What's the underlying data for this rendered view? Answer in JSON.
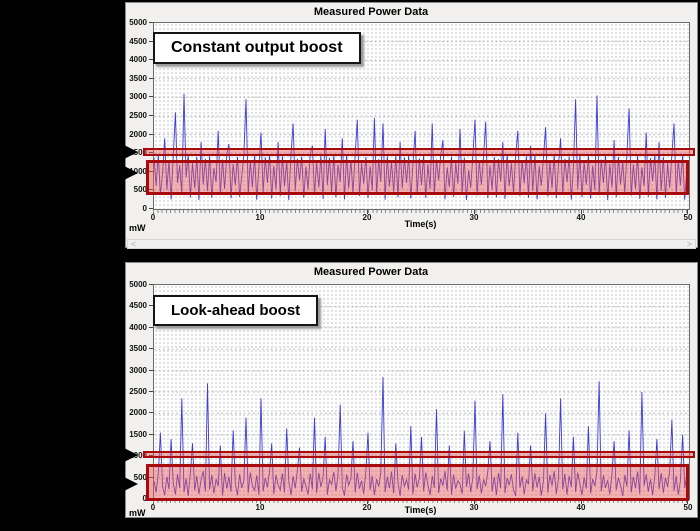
{
  "window": {
    "background": "#000000",
    "accent_red": "#a80b0b",
    "line_blue": "#3c3cd6"
  },
  "scrollbar": {
    "left_icon": "<",
    "right_icon": ">"
  },
  "chart_data": [
    {
      "type": "line",
      "title": "Measured Power Data",
      "annotation": "Constant output boost",
      "xlabel": "Time(s)",
      "unit": "mW",
      "xlim": [
        0,
        50
      ],
      "ylim": [
        0,
        5000
      ],
      "xticks": [
        0,
        10,
        20,
        30,
        40,
        50
      ],
      "yticks": [
        0,
        500,
        1000,
        1500,
        2000,
        2500,
        3000,
        3500,
        4000,
        4500,
        5000
      ],
      "grid": "dotted",
      "legend": "none",
      "line_color": "#3c3cd6",
      "highlight_band": {
        "y_from": 1400,
        "y_to": 1600
      },
      "highlight_box": {
        "y_from": 420,
        "y_to": 1300
      },
      "arrow_values": [
        1500,
        950
      ],
      "x_step": 0.2,
      "y_values": [
        1380,
        620,
        1450,
        380,
        980,
        1900,
        520,
        1300,
        260,
        1430,
        2600,
        700,
        1180,
        420,
        3100,
        850,
        1460,
        310,
        1240,
        560,
        1400,
        240,
        1800,
        660,
        1350,
        480,
        1420,
        300,
        1100,
        720,
        2100,
        380,
        1330,
        540,
        1460,
        1750,
        290,
        1210,
        640,
        1400,
        330,
        860,
        1480,
        2950,
        410,
        1270,
        580,
        1440,
        250,
        1120,
        2050,
        450,
        1390,
        700,
        1450,
        280,
        1160,
        530,
        1800,
        350,
        1420,
        610,
        1280,
        240,
        1460,
        2300,
        480,
        1350,
        770,
        1410,
        300,
        1140,
        520,
        1470,
        1700,
        390,
        1260,
        580,
        1430,
        270,
        2150,
        640,
        1380,
        450,
        1450,
        310,
        1190,
        720,
        1900,
        260,
        1440,
        560,
        1310,
        420,
        1480,
        2400,
        350,
        1230,
        680,
        1400,
        290,
        1150,
        500,
        2450,
        380,
        1340,
        730,
        2300,
        250,
        1420,
        600,
        1270,
        460,
        1450,
        320,
        1800,
        550,
        1390,
        700,
        1430,
        280,
        1180,
        2100,
        410,
        1360,
        640,
        1440,
        300,
        1210,
        540,
        2300,
        380,
        1330,
        760,
        1460,
        1850,
        260,
        1120,
        590,
        1410,
        330,
        1250,
        680,
        2150,
        420,
        1380,
        240,
        1040,
        570,
        1450,
        2400,
        360,
        1290,
        650,
        1430,
        2350,
        290,
        1170,
        520,
        1400,
        310,
        1340,
        740,
        1800,
        270,
        1460,
        610,
        1230,
        440,
        1450,
        2100,
        350,
        1310,
        690,
        1420,
        300,
        1700,
        480,
        1440,
        260,
        1150,
        620,
        1390,
        2200,
        340,
        1270,
        560,
        1460,
        290,
        1200,
        1900,
        410,
        1350,
        720,
        1410,
        250,
        1090,
        2950,
        530,
        1440,
        320,
        1280,
        650,
        1450,
        280,
        1160,
        510,
        3050,
        370,
        1330,
        700,
        1440,
        240,
        1210,
        580,
        1850,
        310,
        1400,
        660,
        1260,
        430,
        1470,
        2700,
        360,
        1190,
        540,
        1430,
        270,
        1120,
        610,
        2050,
        330,
        1370,
        750,
        1450,
        260,
        1800,
        490,
        1400,
        300,
        1240,
        570,
        1460,
        2300,
        380,
        1320,
        640,
        1440,
        250,
        1100,
        820
      ]
    },
    {
      "type": "line",
      "title": "Measured Power Data",
      "annotation": "Look-ahead boost",
      "xlabel": "Time(s)",
      "unit": "mW",
      "xlim": [
        0,
        50
      ],
      "ylim": [
        0,
        5000
      ],
      "xticks": [
        0,
        10,
        20,
        30,
        40,
        50
      ],
      "yticks": [
        0,
        500,
        1000,
        1500,
        2000,
        2500,
        3000,
        3500,
        4000,
        4500,
        5000
      ],
      "grid": "dotted",
      "legend": "none",
      "line_color": "#3c3cd6",
      "highlight_band": {
        "y_from": 930,
        "y_to": 1100
      },
      "highlight_box": {
        "y_from": 0,
        "y_to": 800
      },
      "arrow_values": [
        1000,
        330
      ],
      "x_step": 0.2,
      "y_values": [
        420,
        150,
        600,
        1550,
        280,
        90,
        520,
        230,
        1400,
        360,
        110,
        580,
        250,
        2350,
        160,
        480,
        70,
        630,
        1300,
        200,
        540,
        120,
        440,
        650,
        180,
        2700,
        220,
        560,
        130,
        470,
        300,
        1250,
        80,
        610,
        240,
        520,
        170,
        1600,
        350,
        90,
        580,
        260,
        440,
        1900,
        140,
        620,
        310,
        200,
        550,
        100,
        2350,
        180,
        490,
        270,
        640,
        1300,
        120,
        560,
        330,
        210,
        600,
        150,
        1650,
        420,
        90,
        530,
        250,
        660,
        1200,
        170,
        480,
        300,
        110,
        590,
        230,
        1900,
        140,
        610,
        280,
        520,
        1450,
        100,
        450,
        340,
        630,
        190,
        550,
        2200,
        260,
        80,
        570,
        320,
        480,
        1350,
        150,
        620,
        240,
        430,
        120,
        660,
        1550,
        210,
        540,
        90,
        470,
        290,
        610,
        2850,
        160,
        520,
        250,
        640,
        130,
        1300,
        380,
        70,
        560,
        300,
        450,
        220,
        1700,
        110,
        590,
        270,
        500,
        1450,
        180,
        620,
        330,
        90,
        540,
        260,
        2100,
        140,
        480,
        310,
        650,
        200,
        1250,
        100,
        570,
        240,
        430,
        350,
        120,
        1600,
        280,
        600,
        160,
        510,
        2300,
        230,
        550,
        130,
        460,
        300,
        640,
        1350,
        170,
        520,
        90,
        610,
        250,
        2450,
        140,
        490,
        320,
        580,
        210,
        70,
        1550,
        260,
        530,
        110,
        450,
        340,
        1250,
        190,
        600,
        270,
        520,
        80,
        430,
        2000,
        150,
        560,
        310,
        650,
        120,
        480,
        2350,
        220,
        590,
        100,
        540,
        280,
        1450,
        160,
        620,
        350,
        90,
        510,
        240,
        1700,
        130,
        470,
        300,
        630,
        2750,
        180,
        550,
        260,
        440,
        110,
        600,
        1350,
        210,
        490,
        330,
        70,
        560,
        290,
        1600,
        150,
        520,
        250,
        640,
        120,
        2500,
        310,
        580,
        170,
        460,
        90,
        530,
        1400,
        230,
        610,
        140,
        500,
        280,
        650,
        1850,
        190,
        540,
        100,
        420,
        1500,
        260,
        570,
        330
      ]
    }
  ]
}
